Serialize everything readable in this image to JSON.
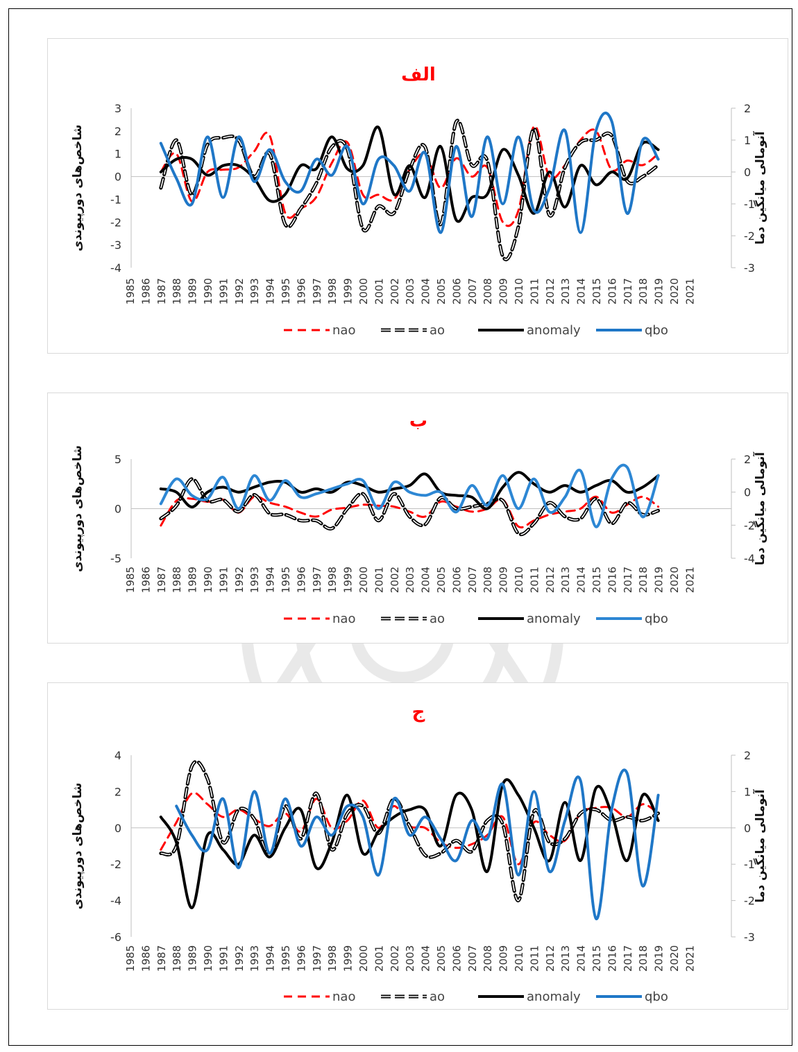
{
  "chart_data": [
    {
      "type": "line",
      "title": "الف",
      "ylabel": "شاخص‌های دورپیوندی",
      "y2label": "آنومالی میانگین دما",
      "ylim": [
        -4,
        3
      ],
      "y2lim": [
        -3,
        2
      ],
      "yticks": [
        "3",
        "2",
        "1",
        "0",
        "-1",
        "-2",
        "-3",
        "-4"
      ],
      "y2ticks": [
        "2",
        "1",
        "0",
        "-1",
        "-2",
        "-3"
      ],
      "categories": [
        "1985",
        "1986",
        "1987",
        "1988",
        "1989",
        "1990",
        "1991",
        "1992",
        "1993",
        "1994",
        "1995",
        "1996",
        "1997",
        "1998",
        "1999",
        "2000",
        "2001",
        "2002",
        "2003",
        "2004",
        "2005",
        "2006",
        "2007",
        "2008",
        "2009",
        "2010",
        "2011",
        "2012",
        "2013",
        "2014",
        "2015",
        "2016",
        "2017",
        "2018",
        "2019",
        "2020",
        "2021"
      ],
      "legend": [
        "nao",
        "ao",
        "anomaly",
        "qbo"
      ],
      "series": [
        {
          "name": "nao",
          "axis": "left",
          "color": "#ff0000",
          "style": "dashed",
          "x": [
            1987,
            1988,
            1989,
            1990,
            1991,
            1992,
            1993,
            1994,
            1995,
            1996,
            1997,
            1998,
            1999,
            2000,
            2001,
            2002,
            2003,
            2004,
            2005,
            2006,
            2007,
            2008,
            2009,
            2010,
            2011,
            2012,
            2013,
            2014,
            2015,
            2016,
            2017,
            2018,
            2019
          ],
          "values": [
            0.2,
            1.0,
            -1.1,
            0.2,
            0.3,
            0.4,
            1.1,
            1.8,
            -1.6,
            -1.4,
            -0.9,
            0.6,
            1.5,
            -0.8,
            -0.8,
            -1.0,
            0.3,
            1.0,
            -0.5,
            0.8,
            0.0,
            0.4,
            -2.0,
            -1.5,
            2.2,
            0.0,
            0.5,
            1.6,
            2.0,
            0.3,
            0.7,
            0.5,
            1.0
          ]
        },
        {
          "name": "ao",
          "axis": "left",
          "color": "#000000",
          "style": "dashed-double",
          "x": [
            1987,
            1988,
            1989,
            1990,
            1991,
            1992,
            1993,
            1994,
            1995,
            1996,
            1997,
            1998,
            1999,
            2000,
            2001,
            2002,
            2003,
            2004,
            2005,
            2006,
            2007,
            2008,
            2009,
            2010,
            2011,
            2012,
            2013,
            2014,
            2015,
            2016,
            2017,
            2018,
            2019
          ],
          "values": [
            -0.5,
            1.6,
            -0.8,
            1.4,
            1.7,
            1.6,
            0.0,
            1.0,
            -2.1,
            -1.4,
            -0.3,
            1.3,
            1.2,
            -2.3,
            -1.3,
            -1.6,
            0.3,
            1.3,
            -2.1,
            2.4,
            0.5,
            0.7,
            -3.5,
            -2.2,
            2.1,
            -1.7,
            0.4,
            1.5,
            1.6,
            1.8,
            -0.2,
            0.0,
            0.5
          ]
        },
        {
          "name": "anomaly",
          "axis": "right",
          "color": "#000000",
          "style": "solid-thick",
          "x": [
            1987,
            1988,
            1989,
            1990,
            1991,
            1992,
            1993,
            1994,
            1995,
            1996,
            1997,
            1998,
            1999,
            2000,
            2001,
            2002,
            2003,
            2004,
            2005,
            2006,
            2007,
            2008,
            2009,
            2010,
            2011,
            2012,
            2013,
            2014,
            2015,
            2016,
            2017,
            2018,
            2019
          ],
          "values": [
            0.0,
            0.4,
            0.4,
            -0.1,
            0.2,
            0.2,
            -0.2,
            -0.9,
            -0.7,
            0.2,
            0.1,
            1.1,
            0.1,
            0.2,
            1.4,
            -0.7,
            0.2,
            -0.8,
            0.8,
            -1.5,
            -0.8,
            -0.7,
            0.7,
            -0.1,
            -1.3,
            0.0,
            -1.1,
            0.2,
            -0.4,
            0.0,
            -0.2,
            0.9,
            0.7
          ]
        },
        {
          "name": "qbo",
          "axis": "right",
          "color": "#1f77c7",
          "style": "solid-thick",
          "x": [
            1987,
            1988,
            1989,
            1990,
            1991,
            1992,
            1993,
            1994,
            1995,
            1996,
            1997,
            1998,
            1999,
            2000,
            2001,
            2002,
            2003,
            2004,
            2005,
            2006,
            2007,
            2008,
            2009,
            2010,
            2011,
            2012,
            2013,
            2014,
            2015,
            2016,
            2017,
            2018,
            2019
          ],
          "values": [
            0.9,
            -0.2,
            -1.0,
            1.1,
            -0.8,
            1.1,
            -0.3,
            0.7,
            -0.3,
            -0.6,
            0.4,
            -0.1,
            0.8,
            -1.0,
            0.4,
            0.2,
            -0.6,
            0.6,
            -1.9,
            0.8,
            -1.4,
            1.1,
            -1.0,
            1.1,
            -1.2,
            -0.5,
            1.3,
            -1.9,
            1.3,
            1.6,
            -1.3,
            1.0,
            0.4
          ]
        }
      ]
    },
    {
      "type": "line",
      "title": "ب",
      "ylabel": "شاخص‌های دورپیوندی",
      "y2label": "آنومالی میانگین دما",
      "ylim": [
        -5,
        5
      ],
      "y2lim": [
        -4,
        2
      ],
      "yticks": [
        "5",
        "0",
        "-5"
      ],
      "y2ticks": [
        "2",
        "0",
        "-2",
        "-4"
      ],
      "categories": [
        "1985",
        "1986",
        "1987",
        "1988",
        "1989",
        "1990",
        "1991",
        "1992",
        "1993",
        "1994",
        "1995",
        "1996",
        "1997",
        "1998",
        "1999",
        "2000",
        "2001",
        "2002",
        "2003",
        "2004",
        "2005",
        "2006",
        "2007",
        "2008",
        "2009",
        "2010",
        "2011",
        "2012",
        "2013",
        "2014",
        "2015",
        "2016",
        "2017",
        "2018",
        "2019",
        "2020",
        "2021"
      ],
      "legend": [
        "nao",
        "ao",
        "anomaly",
        "qbo"
      ],
      "series": [
        {
          "name": "nao",
          "axis": "left",
          "color": "#ff0000",
          "style": "dashed",
          "x": [
            1987,
            1988,
            1989,
            1990,
            1991,
            1992,
            1993,
            1994,
            1995,
            1996,
            1997,
            1998,
            1999,
            2000,
            2001,
            2002,
            2003,
            2004,
            2005,
            2006,
            2007,
            2008,
            2009,
            2010,
            2011,
            2012,
            2013,
            2014,
            2015,
            2016,
            2017,
            2018,
            2019
          ],
          "values": [
            -1.7,
            0.8,
            1.0,
            0.7,
            0.9,
            -0.4,
            1.2,
            0.6,
            0.2,
            -0.4,
            -0.8,
            -0.1,
            0.1,
            0.4,
            0.3,
            0.2,
            -0.3,
            -0.8,
            0.7,
            0.2,
            -0.3,
            0.0,
            0.9,
            -1.8,
            -1.2,
            -0.6,
            -0.3,
            0.0,
            1.2,
            -0.4,
            0.4,
            1.2,
            0.2
          ]
        },
        {
          "name": "ao",
          "axis": "left",
          "color": "#000000",
          "style": "dashed-double",
          "x": [
            1987,
            1988,
            1989,
            1990,
            1991,
            1992,
            1993,
            1994,
            1995,
            1996,
            1997,
            1998,
            1999,
            2000,
            2001,
            2002,
            2003,
            2004,
            2005,
            2006,
            2007,
            2008,
            2009,
            2010,
            2011,
            2012,
            2013,
            2014,
            2015,
            2016,
            2017,
            2018,
            2019
          ],
          "values": [
            -1.0,
            0.3,
            3.0,
            0.8,
            0.9,
            -0.3,
            1.4,
            -0.5,
            -0.6,
            -1.2,
            -1.2,
            -2.0,
            0.0,
            1.5,
            -1.2,
            1.5,
            -0.8,
            -1.6,
            1.1,
            0.0,
            0.2,
            0.5,
            0.8,
            -2.5,
            -1.5,
            0.6,
            -0.8,
            -1.0,
            1.0,
            -1.5,
            0.6,
            -0.6,
            -0.2
          ]
        },
        {
          "name": "anomaly",
          "axis": "right",
          "color": "#000000",
          "style": "solid-thick",
          "x": [
            1987,
            1988,
            1989,
            1990,
            1991,
            1992,
            1993,
            1994,
            1995,
            1996,
            1997,
            1998,
            1999,
            2000,
            2001,
            2002,
            2003,
            2004,
            2005,
            2006,
            2007,
            2008,
            2009,
            2010,
            2011,
            2012,
            2013,
            2014,
            2015,
            2016,
            2017,
            2018,
            2019
          ],
          "values": [
            0.2,
            0.0,
            -0.9,
            0.0,
            0.3,
            0.0,
            0.3,
            0.6,
            0.6,
            0.0,
            0.2,
            0.0,
            0.6,
            0.4,
            0.0,
            0.2,
            0.4,
            1.1,
            0.0,
            -0.2,
            -0.3,
            -1.0,
            0.3,
            1.2,
            0.5,
            0.0,
            0.4,
            0.0,
            0.4,
            0.7,
            0.0,
            0.3,
            1.0
          ]
        },
        {
          "name": "qbo",
          "axis": "right",
          "color": "#2d87d4",
          "style": "solid-thick",
          "x": [
            1987,
            1988,
            1989,
            1990,
            1991,
            1992,
            1993,
            1994,
            1995,
            1996,
            1997,
            1998,
            1999,
            2000,
            2001,
            2002,
            2003,
            2004,
            2005,
            2006,
            2007,
            2008,
            2009,
            2010,
            2011,
            2012,
            2013,
            2014,
            2015,
            2016,
            2017,
            2018,
            2019
          ],
          "values": [
            -0.7,
            0.8,
            -0.2,
            -0.4,
            0.9,
            -1.0,
            1.0,
            -0.5,
            0.7,
            -0.3,
            -0.1,
            0.2,
            0.5,
            0.7,
            -1.0,
            0.6,
            0.0,
            -0.2,
            0.0,
            -1.2,
            0.4,
            -0.8,
            1.0,
            -1.0,
            0.8,
            -1.2,
            -0.3,
            1.3,
            -2.1,
            0.8,
            1.5,
            -1.5,
            1.0
          ]
        }
      ]
    },
    {
      "type": "line",
      "title": "ج",
      "ylabel": "شاخص‌های دورپیوندی",
      "y2label": "آنومالی میانگین دما",
      "ylim": [
        -6,
        4
      ],
      "y2lim": [
        -3,
        2
      ],
      "yticks": [
        "4",
        "2",
        "0",
        "-2",
        "-4",
        "-6"
      ],
      "y2ticks": [
        "2",
        "1",
        "0",
        "-1",
        "-2",
        "-3"
      ],
      "categories": [
        "1985",
        "1986",
        "1987",
        "1988",
        "1989",
        "1990",
        "1991",
        "1992",
        "1993",
        "1994",
        "1995",
        "1996",
        "1997",
        "1998",
        "1999",
        "2000",
        "2001",
        "2002",
        "2003",
        "2004",
        "2005",
        "2006",
        "2007",
        "2008",
        "2009",
        "2010",
        "2011",
        "2012",
        "2013",
        "2014",
        "2015",
        "2016",
        "2017",
        "2018",
        "2019",
        "2020",
        "2021"
      ],
      "legend": [
        "nao",
        "ao",
        "anomaly",
        "qbo"
      ],
      "series": [
        {
          "name": "nao",
          "axis": "left",
          "color": "#ff0000",
          "style": "dashed",
          "x": [
            1987,
            1988,
            1989,
            1990,
            1991,
            1992,
            1993,
            1994,
            1995,
            1996,
            1997,
            1998,
            1999,
            2000,
            2001,
            2002,
            2003,
            2004,
            2005,
            2006,
            2007,
            2008,
            2009,
            2010,
            2011,
            2012,
            2013,
            2014,
            2015,
            2016,
            2017,
            2018,
            2019
          ],
          "values": [
            -1.2,
            0.3,
            1.9,
            1.3,
            0.6,
            1.0,
            0.5,
            0.1,
            0.8,
            -0.2,
            1.6,
            0.0,
            0.4,
            1.5,
            0.0,
            1.2,
            0.1,
            0.0,
            -0.8,
            -1.1,
            -0.9,
            -0.4,
            0.6,
            -2.0,
            0.3,
            -0.4,
            -0.7,
            0.8,
            1.1,
            1.1,
            0.6,
            1.3,
            0.8
          ]
        },
        {
          "name": "ao",
          "axis": "left",
          "color": "#000000",
          "style": "dashed-double",
          "x": [
            1987,
            1988,
            1989,
            1990,
            1991,
            1992,
            1993,
            1994,
            1995,
            1996,
            1997,
            1998,
            1999,
            2000,
            2001,
            2002,
            2003,
            2004,
            2005,
            2006,
            2007,
            2008,
            2009,
            2010,
            2011,
            2012,
            2013,
            2014,
            2015,
            2016,
            2017,
            2018,
            2019
          ],
          "values": [
            -1.4,
            -1.0,
            3.4,
            2.7,
            -0.8,
            1.0,
            0.5,
            -1.5,
            1.2,
            -0.6,
            1.9,
            -1.2,
            0.8,
            1.2,
            -0.3,
            1.6,
            0.1,
            -1.5,
            -1.4,
            -0.7,
            -1.3,
            0.4,
            0.2,
            -4.0,
            0.9,
            -0.8,
            -0.6,
            0.8,
            1.0,
            0.4,
            0.6,
            0.4,
            0.8
          ]
        },
        {
          "name": "anomaly",
          "axis": "right",
          "color": "#000000",
          "style": "solid-thick",
          "x": [
            1987,
            1988,
            1989,
            1990,
            1991,
            1992,
            1993,
            1994,
            1995,
            1996,
            1997,
            1998,
            1999,
            2000,
            2001,
            2002,
            2003,
            2004,
            2005,
            2006,
            2007,
            2008,
            2009,
            2010,
            2011,
            2012,
            2013,
            2014,
            2015,
            2016,
            2017,
            2018,
            2019
          ],
          "values": [
            0.3,
            -0.4,
            -2.2,
            -0.2,
            -0.6,
            -1.0,
            -0.2,
            -0.8,
            0.0,
            0.5,
            -1.1,
            -0.4,
            0.9,
            -0.7,
            -0.1,
            0.3,
            0.5,
            0.5,
            -0.5,
            0.9,
            0.5,
            -1.2,
            1.2,
            0.9,
            0.0,
            -0.9,
            0.7,
            -0.9,
            1.1,
            0.4,
            -0.9,
            0.9,
            0.2
          ]
        },
        {
          "name": "qbo",
          "axis": "right",
          "color": "#1f77c7",
          "style": "solid-thick",
          "x": [
            1987,
            1988,
            1989,
            1990,
            1991,
            1992,
            1993,
            1994,
            1995,
            1996,
            1997,
            1998,
            1999,
            2000,
            2001,
            2002,
            2003,
            2004,
            2005,
            2006,
            2007,
            2008,
            2009,
            2010,
            2011,
            2012,
            2013,
            2014,
            2015,
            2016,
            2017,
            2018,
            2019
          ],
          "values": [
            null,
            0.6,
            -0.2,
            -0.6,
            0.8,
            -1.1,
            1.0,
            -0.7,
            0.8,
            -0.5,
            0.3,
            -0.2,
            0.6,
            0.3,
            -1.3,
            0.8,
            -0.2,
            0.3,
            -0.3,
            -0.9,
            0.2,
            -0.3,
            1.2,
            -1.3,
            1.0,
            -1.2,
            0.2,
            1.3,
            -2.5,
            0.5,
            1.5,
            -1.6,
            0.9
          ]
        }
      ]
    }
  ]
}
